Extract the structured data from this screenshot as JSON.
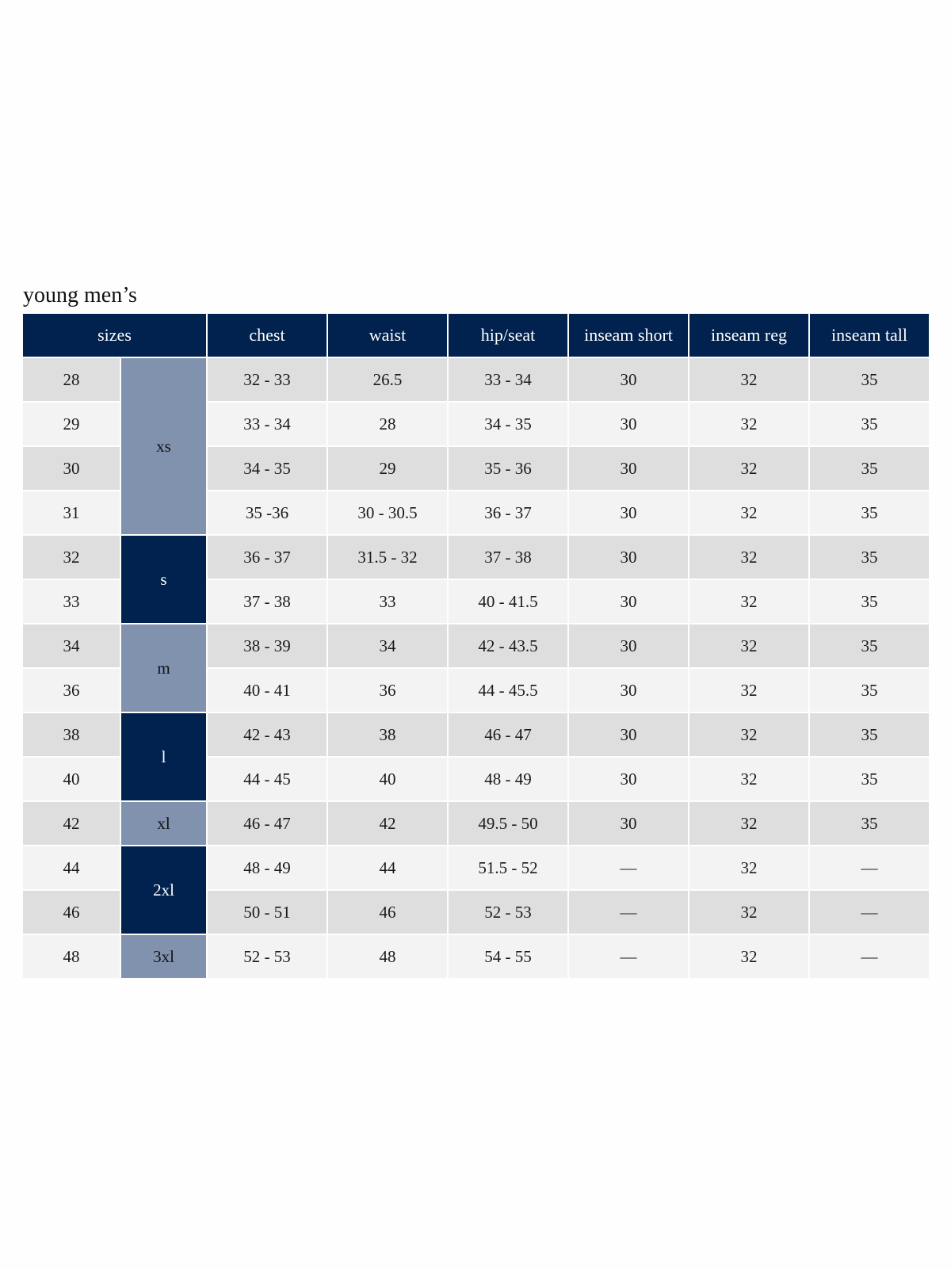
{
  "title": "young men’s",
  "colors": {
    "header": "#01224e",
    "size_light": "#8192ae",
    "size_dark": "#01224e",
    "row_odd": "#dedede",
    "row_even": "#f3f3f3"
  },
  "headers": [
    "sizes",
    "chest",
    "waist",
    "hip/seat",
    "inseam short",
    "inseam reg",
    "inseam tall"
  ],
  "size_groups": [
    {
      "label": "xs",
      "rows": 4,
      "style": "light"
    },
    {
      "label": "s",
      "rows": 2,
      "style": "dark"
    },
    {
      "label": "m",
      "rows": 2,
      "style": "light"
    },
    {
      "label": "l",
      "rows": 2,
      "style": "dark"
    },
    {
      "label": "xl",
      "rows": 1,
      "style": "light"
    },
    {
      "label": "2xl",
      "rows": 2,
      "style": "dark"
    },
    {
      "label": "3xl",
      "rows": 1,
      "style": "light"
    }
  ],
  "rows": [
    [
      "28",
      "32 - 33",
      "26.5",
      "33 - 34",
      "30",
      "32",
      "35"
    ],
    [
      "29",
      "33 - 34",
      "28",
      "34 - 35",
      "30",
      "32",
      "35"
    ],
    [
      "30",
      "34 - 35",
      "29",
      "35 - 36",
      "30",
      "32",
      "35"
    ],
    [
      "31",
      "35 -36",
      "30 - 30.5",
      "36 - 37",
      "30",
      "32",
      "35"
    ],
    [
      "32",
      "36 - 37",
      "31.5 - 32",
      "37 - 38",
      "30",
      "32",
      "35"
    ],
    [
      "33",
      "37 - 38",
      "33",
      "40 - 41.5",
      "30",
      "32",
      "35"
    ],
    [
      "34",
      "38 - 39",
      "34",
      "42 - 43.5",
      "30",
      "32",
      "35"
    ],
    [
      "36",
      "40 - 41",
      "36",
      "44 - 45.5",
      "30",
      "32",
      "35"
    ],
    [
      "38",
      "42 - 43",
      "38",
      "46 - 47",
      "30",
      "32",
      "35"
    ],
    [
      "40",
      "44 - 45",
      "40",
      "48 - 49",
      "30",
      "32",
      "35"
    ],
    [
      "42",
      "46 - 47",
      "42",
      "49.5 - 50",
      "30",
      "32",
      "35"
    ],
    [
      "44",
      "48 - 49",
      "44",
      "51.5 - 52",
      "—",
      "32",
      "—"
    ],
    [
      "46",
      "50 - 51",
      "46",
      "52 - 53",
      "—",
      "32",
      "—"
    ],
    [
      "48",
      "52 - 53",
      "48",
      "54 - 55",
      "—",
      "32",
      "—"
    ]
  ]
}
